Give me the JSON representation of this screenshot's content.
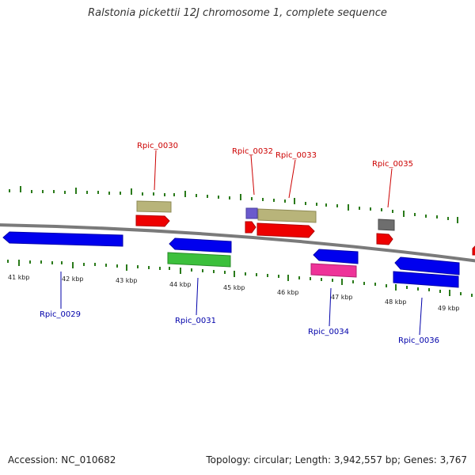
{
  "title": "Ralstonia pickettii 12J chromosome 1, complete sequence",
  "footer": {
    "accession": "Accession: NC_010682",
    "summary": "Topology: circular; Length: 3,942,557 bp; Genes: 3,767"
  },
  "axis_labels": [
    "41 kbp",
    "42 kbp",
    "43 kbp",
    "44 kbp",
    "45 kbp",
    "46 kbp",
    "47 kbp",
    "48 kbp",
    "49 kbp"
  ],
  "gene_labels": [
    {
      "text": "Rpic_0029",
      "strand": "reverse"
    },
    {
      "text": "Rpic_0030",
      "strand": "forward"
    },
    {
      "text": "Rpic_0031",
      "strand": "reverse"
    },
    {
      "text": "Rpic_0032",
      "strand": "forward"
    },
    {
      "text": "Rpic_0033",
      "strand": "forward"
    },
    {
      "text": "Rpic_0034",
      "strand": "reverse"
    },
    {
      "text": "Rpic_0035",
      "strand": "forward"
    },
    {
      "text": "Rpic_0036",
      "strand": "reverse"
    }
  ],
  "colors": {
    "forward_label": "#cc0000",
    "reverse_label": "#0000aa",
    "backbone": "#7a7a7a",
    "tick": "#2a7a1a",
    "gene_red": "#ee0000",
    "gene_blue": "#0000ee",
    "gene_khaki": "#b8b47a",
    "gene_green": "#3cc03c",
    "gene_magenta": "#ee3399",
    "gene_purple": "#6a5acd",
    "gene_gray": "#6e6e6e"
  }
}
